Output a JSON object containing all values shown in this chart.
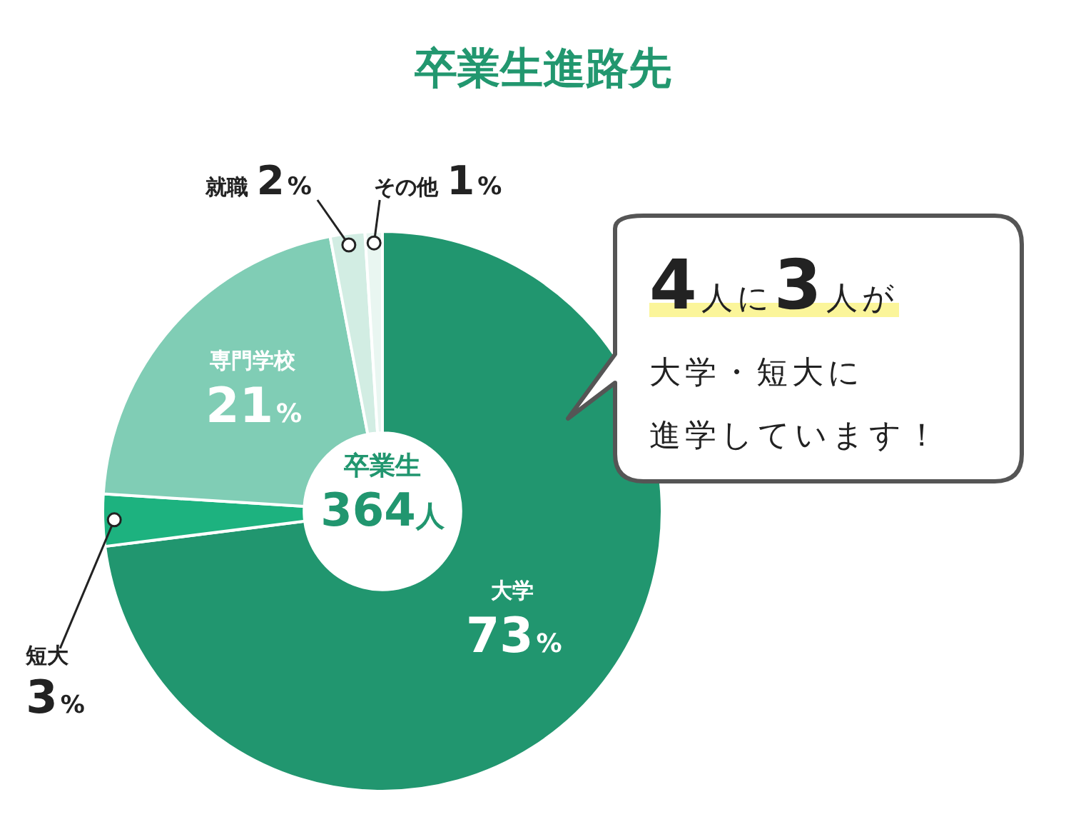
{
  "chart_data": {
    "type": "donut",
    "title": "卒業生進路先",
    "categories": [
      "大学",
      "短大",
      "専門学校",
      "就職",
      "その他"
    ],
    "values": [
      73,
      3,
      21,
      2,
      1
    ],
    "colors": [
      "#21966f",
      "#1db27f",
      "#80cdb5",
      "#d2ede3",
      "#e9f6f1"
    ],
    "value_labels": [
      "73%",
      "3%",
      "21%",
      "2%",
      "1%"
    ],
    "legend": false,
    "annotations": [
      "卒業生",
      "364人",
      "4人に3人が",
      "大学・短大に",
      "進学しています！"
    ]
  }
}
